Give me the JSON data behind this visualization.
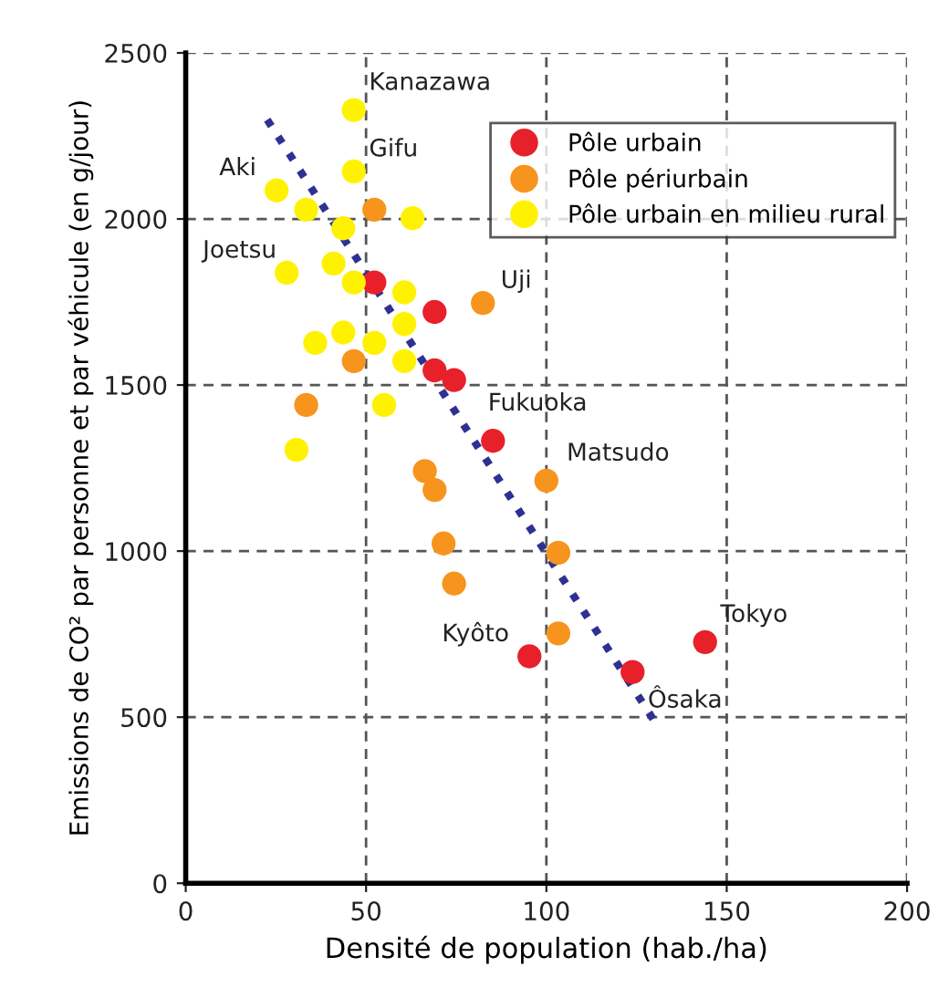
{
  "chart_data": {
    "type": "scatter",
    "xlabel": "Densité de population (hab./ha)",
    "ylabel": "Emissions de CO² par personne et par véhicule (en g/jour)",
    "xlim": [
      0,
      200
    ],
    "xticks": [
      0,
      50,
      100,
      150,
      200
    ],
    "ylim": [
      0,
      2500
    ],
    "yticks": [
      0,
      500,
      1000,
      1500,
      2000,
      2500
    ],
    "grid": true,
    "legend": "top right",
    "marker": "circle",
    "series": [
      {
        "name": "Pôle urbain",
        "color": "#e8202a",
        "x": [
          52.3,
          69,
          69,
          74.4,
          85.2,
          95.3,
          123.9,
          144
        ],
        "values": [
          1809,
          1720,
          1544,
          1515,
          1332,
          683,
          636,
          726
        ]
      },
      {
        "name": "Pôle périurbain",
        "color": "#f7941d",
        "x": [
          52.3,
          82.4,
          46.6,
          33.4,
          66.3,
          69,
          71.5,
          74.4,
          100,
          103.3,
          103.3
        ],
        "values": [
          2028,
          1747,
          1572,
          1440,
          1241,
          1184,
          1023,
          902,
          1212,
          995,
          752
        ]
      },
      {
        "name": "Pôle urbain en milieu rural",
        "color": "#fff200",
        "x": [
          46.6,
          46.6,
          25.2,
          33.4,
          43.7,
          62.9,
          28,
          41,
          46.6,
          60.6,
          60.6,
          43.7,
          35.9,
          52.3,
          60.6,
          55,
          30.7
        ],
        "values": [
          2328,
          2143,
          2086,
          2028,
          1972,
          2002,
          1838,
          1866,
          1809,
          1779,
          1684,
          1658,
          1627,
          1627,
          1572,
          1440,
          1305
        ]
      },
      {
        "type": "line",
        "marker": "none",
        "color": "#2e3192",
        "line_style": "dotted",
        "x": [
          22.6,
          130.6
        ],
        "values": [
          2299,
          477
        ]
      }
    ],
    "annotations": [
      {
        "text": "Kanazawa",
        "x": 46.6,
        "y": 2328
      },
      {
        "text": "Gifu",
        "x": 46.6,
        "y": 2143
      },
      {
        "text": "Aki",
        "x": 25.2,
        "y": 2086
      },
      {
        "text": "Joetsu",
        "x": 28,
        "y": 1838
      },
      {
        "text": "Uji",
        "x": 82.4,
        "y": 1747
      },
      {
        "text": "Fukuoka",
        "x": 85.2,
        "y": 1332
      },
      {
        "text": "Matsudo",
        "x": 100,
        "y": 1212
      },
      {
        "text": "Kyôto",
        "x": 95.3,
        "y": 683
      },
      {
        "text": "Tokyo",
        "x": 144,
        "y": 726
      },
      {
        "text": "Ôsaka",
        "x": 123.9,
        "y": 636
      }
    ]
  }
}
